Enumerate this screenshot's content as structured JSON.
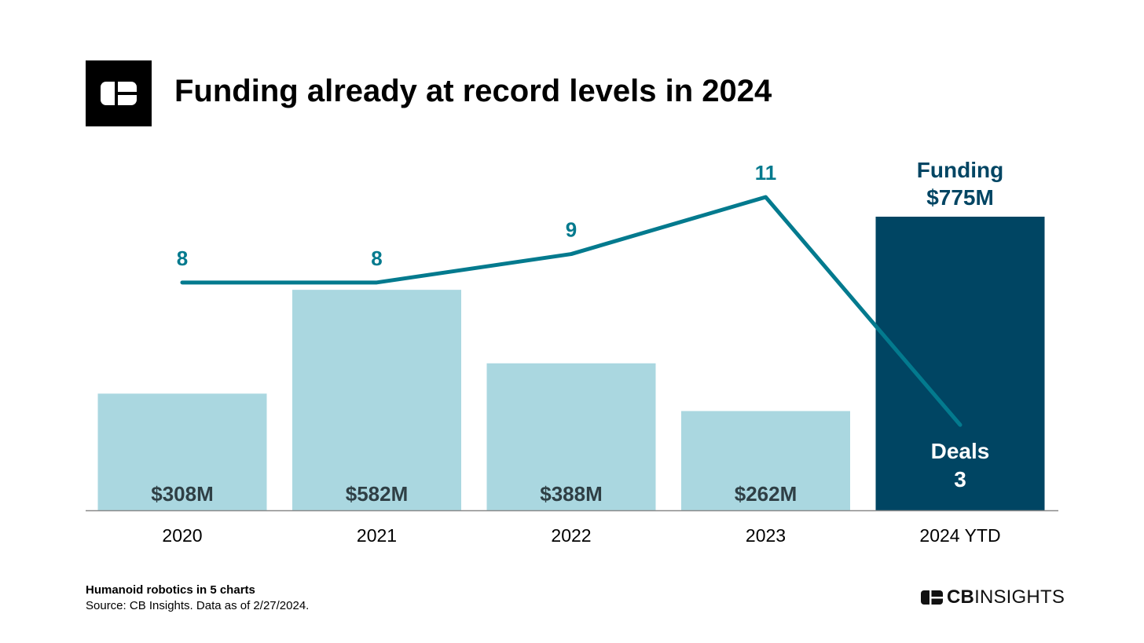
{
  "header": {
    "title": "Funding already at record levels in 2024"
  },
  "chart_data": {
    "type": "bar",
    "categories": [
      "2020",
      "2021",
      "2022",
      "2023",
      "2024 YTD"
    ],
    "series": [
      {
        "name": "Funding",
        "kind": "bar",
        "values": [
          308,
          582,
          388,
          262,
          775
        ],
        "labels": [
          "$308M",
          "$582M",
          "$388M",
          "$262M",
          "$775M"
        ]
      },
      {
        "name": "Deals",
        "kind": "line",
        "values": [
          8,
          8,
          9,
          11,
          3
        ],
        "labels": [
          "8",
          "8",
          "9",
          "11",
          "3"
        ]
      }
    ],
    "highlight": {
      "funding_label": "Funding",
      "deals_label": "Deals"
    },
    "colors": {
      "bar": "#aad7e0",
      "bar_highlight": "#004563",
      "line": "#037a8e",
      "bar_label": "#2f3f45",
      "highlight_text": "#004563",
      "axis": "#8a8a8a"
    },
    "ylim_funding": [
      0,
      775
    ],
    "ylim_deals": [
      0,
      11
    ]
  },
  "footer": {
    "title": "Humanoid robotics in 5 charts",
    "source": "Source: CB Insights. Data as of 2/27/2024.",
    "brand_bold": "CB",
    "brand_rest": "INSIGHTS"
  }
}
